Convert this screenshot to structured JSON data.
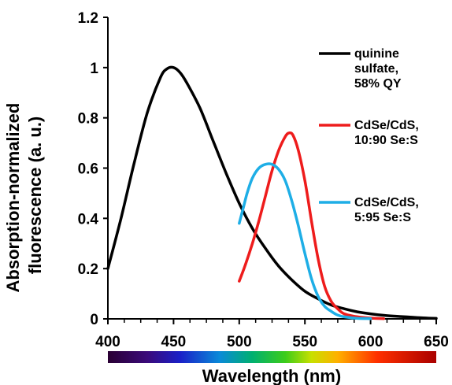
{
  "chart_data": {
    "type": "line",
    "title": "",
    "xlabel": "Wavelength (nm)",
    "ylabel_lines": [
      "Absorption-normalized",
      "fluorescence (a. u.)"
    ],
    "xlim": [
      400,
      650
    ],
    "ylim": [
      0,
      1.2
    ],
    "x_ticks": [
      400,
      450,
      500,
      550,
      600,
      650
    ],
    "x_tick_labels": [
      "400",
      "450",
      "500",
      "550",
      "600",
      "650"
    ],
    "y_ticks": [
      0,
      0.2,
      0.4,
      0.6,
      0.8,
      1,
      1.2
    ],
    "y_tick_labels": [
      "0",
      "0.2",
      "0.4",
      "0.6",
      "0.8",
      "1",
      "1.2"
    ],
    "grid": false,
    "legend_position": "right",
    "spectrum_bar": true,
    "series": [
      {
        "color": "#000000",
        "label_lines": [
          "quinine",
          "sulfate,",
          "58% QY"
        ],
        "x": [
          400,
          410,
          420,
          430,
          440,
          445,
          450,
          455,
          460,
          470,
          480,
          490,
          500,
          510,
          520,
          530,
          540,
          550,
          560,
          570,
          580,
          590,
          600,
          610,
          620,
          630,
          640,
          650
        ],
        "y": [
          0.2,
          0.4,
          0.62,
          0.82,
          0.96,
          0.995,
          1.0,
          0.98,
          0.94,
          0.84,
          0.71,
          0.58,
          0.46,
          0.36,
          0.28,
          0.21,
          0.155,
          0.11,
          0.08,
          0.055,
          0.04,
          0.028,
          0.02,
          0.014,
          0.01,
          0.007,
          0.004,
          0.002
        ]
      },
      {
        "color": "#ee1c1c",
        "label_lines": [
          "CdSe/CdS,",
          "10:90 Se:S"
        ],
        "x": [
          500,
          505,
          510,
          515,
          520,
          525,
          530,
          535,
          538,
          541,
          545,
          550,
          555,
          560,
          565,
          570,
          575,
          580,
          590,
          600,
          610
        ],
        "y": [
          0.15,
          0.22,
          0.3,
          0.39,
          0.49,
          0.59,
          0.67,
          0.725,
          0.74,
          0.73,
          0.67,
          0.55,
          0.39,
          0.24,
          0.13,
          0.07,
          0.04,
          0.02,
          0.008,
          0.003,
          0.001
        ]
      },
      {
        "color": "#1eaee6",
        "label_lines": [
          "CdSe/CdS,",
          "5:95 Se:S"
        ],
        "x": [
          500,
          503,
          506,
          510,
          515,
          520,
          525,
          530,
          535,
          540,
          545,
          550,
          555,
          560,
          565,
          570,
          575,
          580,
          590,
          600
        ],
        "y": [
          0.38,
          0.44,
          0.5,
          0.56,
          0.6,
          0.615,
          0.615,
          0.595,
          0.55,
          0.47,
          0.37,
          0.26,
          0.16,
          0.09,
          0.05,
          0.03,
          0.015,
          0.008,
          0.002,
          0.001
        ]
      }
    ]
  }
}
